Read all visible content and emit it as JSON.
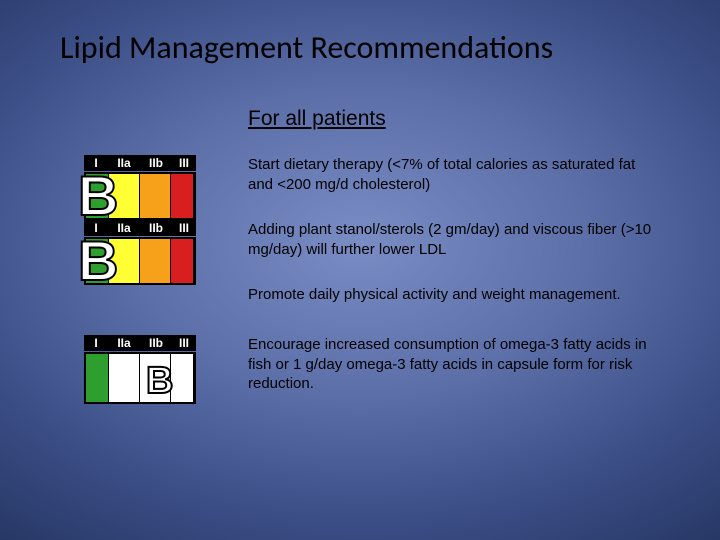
{
  "title": "Lipid Management Recommendations",
  "section_heading": "For all patients",
  "colors": {
    "roman_bg": "#000000",
    "roman_fg": "#ffffff",
    "seg_green": "#2e9e2e",
    "seg_yellow": "#ffff33",
    "seg_orange": "#f7a11a",
    "seg_red": "#d81e1e",
    "seg_white": "#ffffff",
    "letter_fill": "#ffffff",
    "letter_stroke": "#000000"
  },
  "roman_labels": [
    "I",
    "IIa",
    "IIb",
    "III"
  ],
  "badges": [
    {
      "id": "badge-1",
      "letter": "B",
      "letter_style": "big",
      "height_class": "",
      "segments": [
        "seg_green",
        "seg_yellow",
        "seg_orange",
        "seg_red"
      ]
    },
    {
      "id": "badge-2",
      "letter": "B",
      "letter_style": "big",
      "height_class": "",
      "segments": [
        "seg_green",
        "seg_yellow",
        "seg_orange",
        "seg_red"
      ]
    },
    {
      "id": "badge-3",
      "letter": "B",
      "letter_style": "small",
      "height_class": "tall",
      "segments": [
        "seg_green",
        "seg_white",
        "seg_white",
        "seg_white"
      ]
    }
  ],
  "items": [
    {
      "badge": 0,
      "text": "Start dietary therapy (<7% of total calories as saturated fat and <200 mg/d cholesterol)"
    },
    {
      "badge": 1,
      "text": "Adding plant stanol/sterols (2 gm/day) and viscous fiber (>10 mg/day) will further lower LDL"
    },
    {
      "badge": null,
      "text": "Promote daily physical activity and weight management."
    },
    {
      "badge": 2,
      "text": "Encourage increased consumption of omega-3 fatty acids in fish or 1 g/day omega-3 fatty acids in capsule form for risk reduction."
    }
  ]
}
